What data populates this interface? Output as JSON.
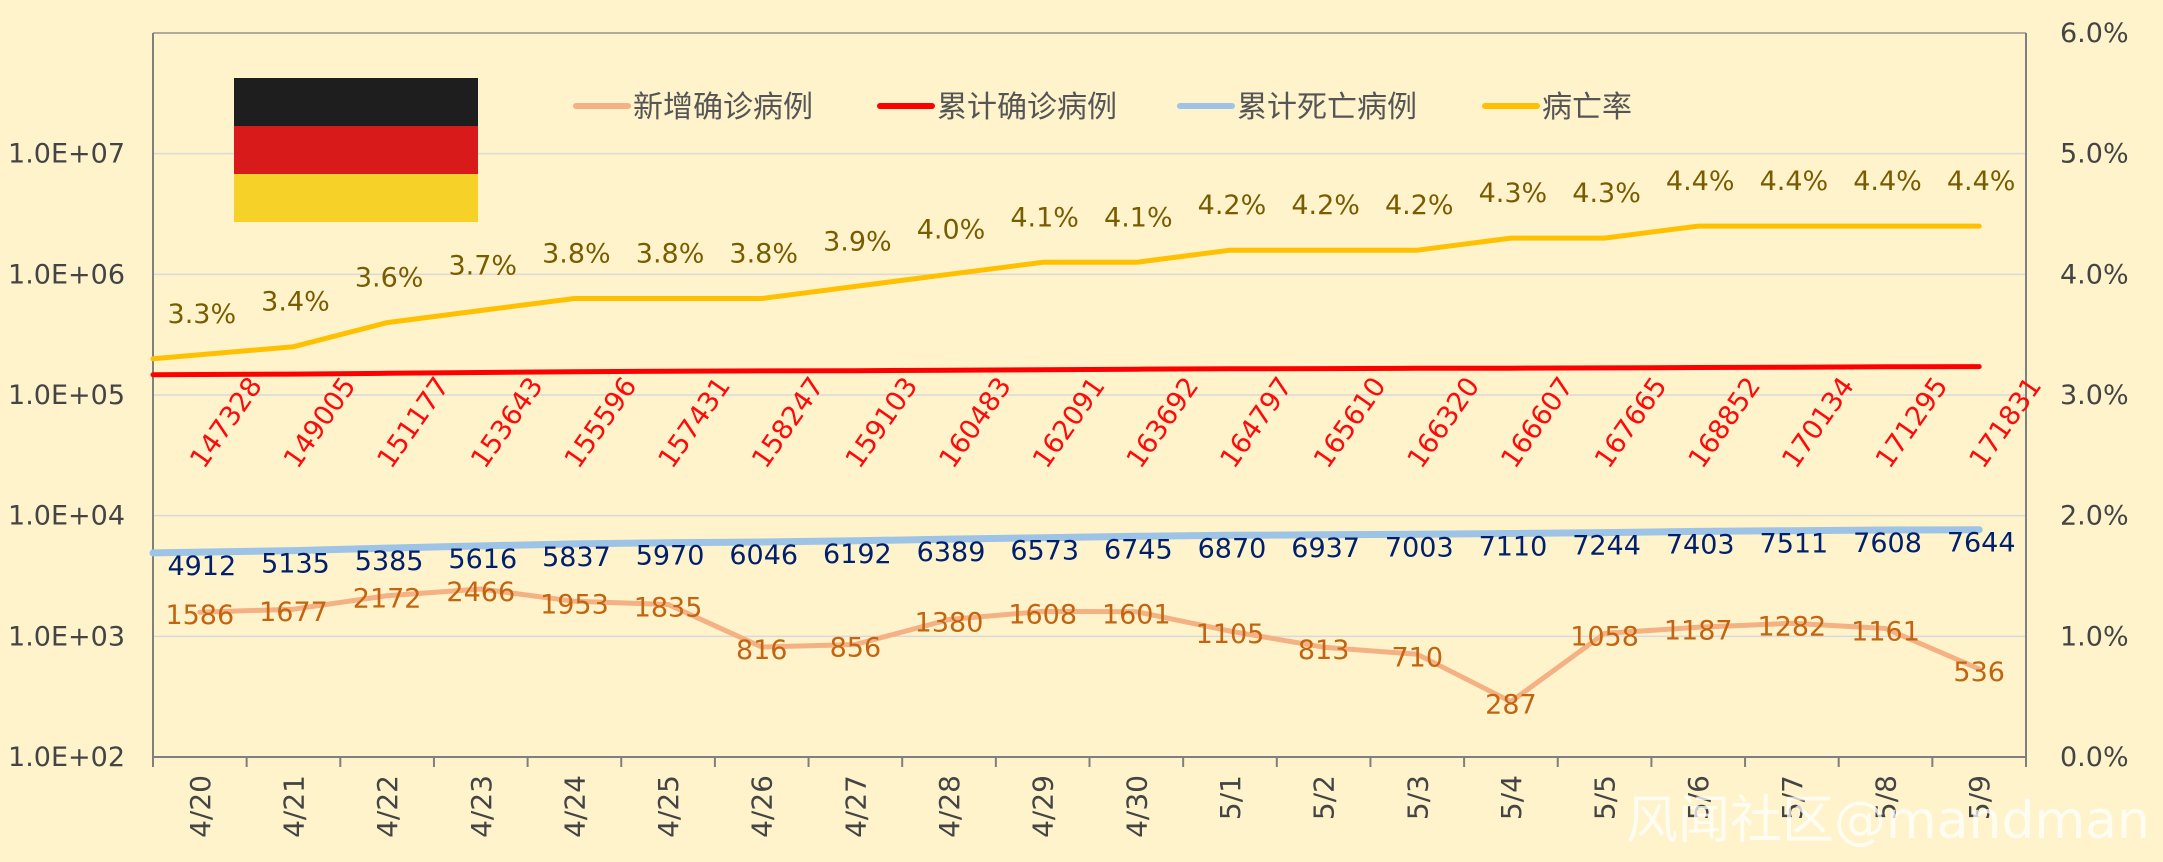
{
  "chart_data": {
    "type": "line",
    "categories": [
      "4/20",
      "4/21",
      "4/22",
      "4/23",
      "4/24",
      "4/25",
      "4/26",
      "4/27",
      "4/28",
      "4/29",
      "4/30",
      "5/1",
      "5/2",
      "5/3",
      "5/4",
      "5/5",
      "5/6",
      "5/7",
      "5/8",
      "5/9"
    ],
    "series": [
      {
        "name": "新增确诊病例",
        "axis": "left-log",
        "color": "#f4b183",
        "values": [
          1586,
          1677,
          2172,
          2466,
          1953,
          1835,
          816,
          856,
          1380,
          1608,
          1601,
          1105,
          813,
          710,
          287,
          1058,
          1187,
          1282,
          1161,
          536
        ]
      },
      {
        "name": "累计确诊病例",
        "axis": "left-log",
        "color": "#ff0000",
        "values": [
          147328,
          149005,
          151177,
          153643,
          155596,
          157431,
          158247,
          159103,
          160483,
          162091,
          163692,
          164797,
          165610,
          166320,
          166607,
          167665,
          168852,
          170134,
          171295,
          171831
        ]
      },
      {
        "name": "累计死亡病例",
        "axis": "left-log",
        "color": "#9dc3e6",
        "values": [
          4912,
          5135,
          5385,
          5616,
          5837,
          5970,
          6046,
          6192,
          6389,
          6573,
          6745,
          6870,
          6937,
          7003,
          7110,
          7244,
          7403,
          7511,
          7608,
          7644
        ]
      },
      {
        "name": "病亡率",
        "axis": "right-percent",
        "color": "#ffc000",
        "values": [
          3.3,
          3.4,
          3.6,
          3.7,
          3.8,
          3.8,
          3.8,
          3.9,
          4.0,
          4.1,
          4.1,
          4.2,
          4.2,
          4.2,
          4.3,
          4.3,
          4.4,
          4.4,
          4.4,
          4.4
        ],
        "labels": [
          "3.3%",
          "3.4%",
          "3.6%",
          "3.7%",
          "3.8%",
          "3.8%",
          "3.8%",
          "3.9%",
          "4.0%",
          "4.1%",
          "4.1%",
          "4.2%",
          "4.2%",
          "4.2%",
          "4.3%",
          "4.3%",
          "4.4%",
          "4.4%",
          "4.4%",
          "4.4%"
        ]
      }
    ],
    "y_left": {
      "scale": "log",
      "range": [
        100,
        100000000
      ],
      "ticks": [
        100,
        1000,
        10000,
        100000,
        1000000,
        10000000
      ],
      "tick_labels": [
        "1.0E+02",
        "1.0E+03",
        "1.0E+04",
        "1.0E+05",
        "1.0E+06",
        "1.0E+07"
      ]
    },
    "y_right": {
      "range": [
        0,
        6
      ],
      "ticks": [
        0,
        1,
        2,
        3,
        4,
        5,
        6
      ],
      "tick_labels": [
        "0.0%",
        "1.0%",
        "2.0%",
        "3.0%",
        "4.0%",
        "5.0%",
        "6.0%"
      ]
    },
    "legend_position": "top",
    "grid": true,
    "colors": {
      "background": "#fff3cc",
      "grid": "#d9d9d9",
      "axis": "#7f7f7f",
      "new_label": "#c26410",
      "death_label": "#00206e",
      "rate_label": "#7a5c00"
    }
  },
  "flag": {
    "name": "germany-flag",
    "stripes": [
      "#1e1e1e",
      "#d81a1a",
      "#f6d228"
    ]
  },
  "watermark": "风闻社区@mandman"
}
